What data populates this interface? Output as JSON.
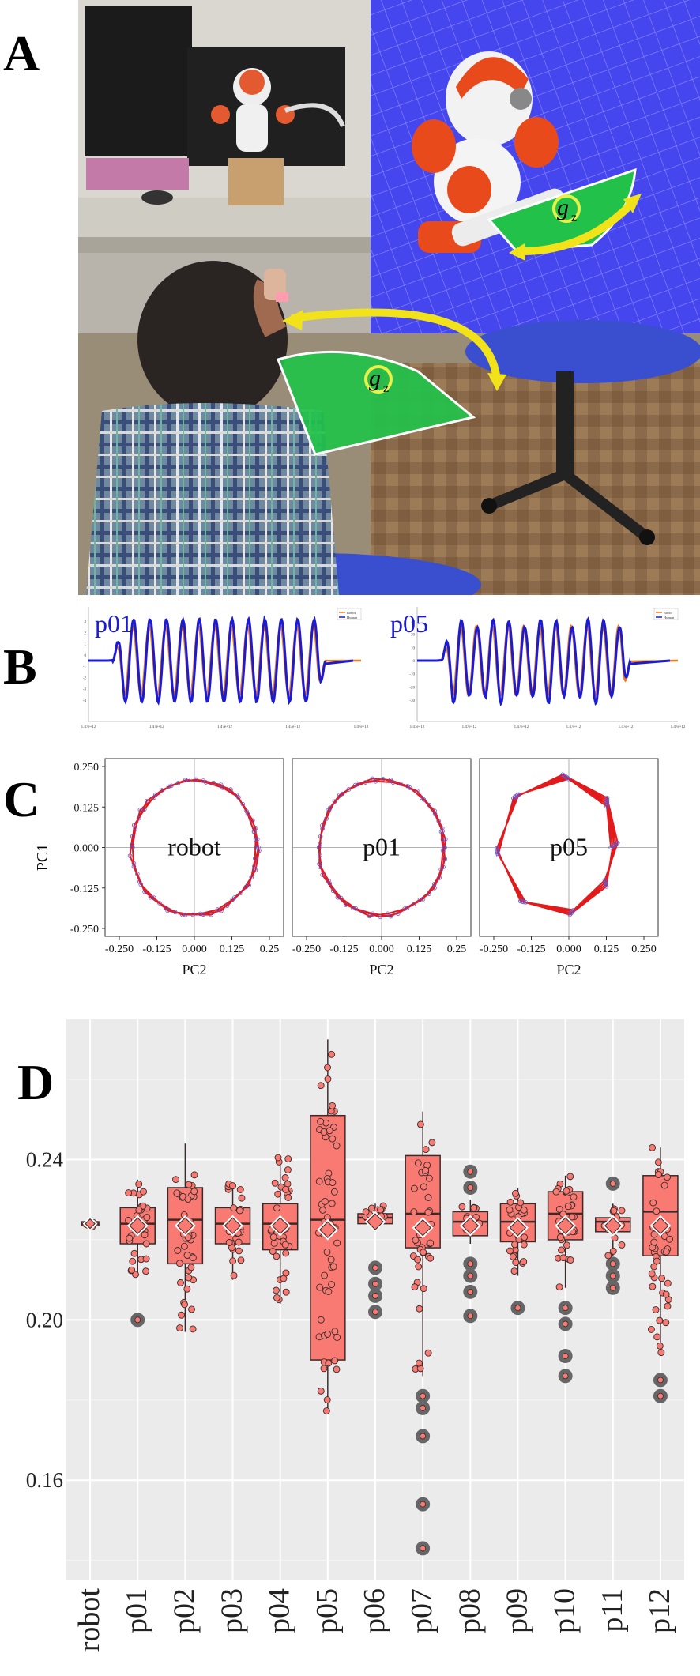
{
  "panels": {
    "a": "A",
    "b": "B",
    "c": "C",
    "d": "D"
  },
  "photo": {
    "gz_label_main": "g",
    "gz_label_sub": "z",
    "colors": {
      "green_area": "#22c24a",
      "arrow": "#f2e21a",
      "sim_floor": "#4c4cf0",
      "robot_orange": "#e84a1c"
    }
  },
  "signal_plots": [
    {
      "label": "p01",
      "legend": [
        "Robot",
        "Human"
      ],
      "x_ticks": [
        "1.47e+12",
        "1.47e+12",
        "1.47e+12",
        "1.47e+12",
        "1.47e+12"
      ],
      "y_ticks": [
        "3",
        "2",
        "1",
        "0",
        "-1",
        "-2",
        "-3",
        "-4"
      ]
    },
    {
      "label": "p05",
      "legend": [
        "Robot",
        "Human"
      ],
      "x_ticks": [
        "1.47e+12",
        "1.47e+12",
        "1.47e+12",
        "1.47e+12",
        "1.47e+12",
        "1.47e+12"
      ],
      "y_ticks": [
        "30",
        "20",
        "10",
        "0",
        "-10",
        "-20",
        "-30"
      ]
    }
  ],
  "colors": {
    "human_series": "#1b1bd6",
    "robot_series": "#f07a1e",
    "pc_line": "#e31a1c",
    "pc_point": "#5a5adf",
    "box_fill": "#f87a72",
    "box_edge": "#3a2a2a",
    "outlier": "#666666",
    "panel_bg": "#ebebeb"
  },
  "chart_data": [
    {
      "type": "scatter",
      "title": "robot",
      "xlabel": "PC2",
      "ylabel": "PC1",
      "xlim": [
        -0.25,
        0.25
      ],
      "ylim": [
        -0.25,
        0.25
      ],
      "x_ticks": [
        "-0.250",
        "-0.125",
        "0.000",
        "0.125",
        "0.25"
      ],
      "y_ticks": [
        "0.250",
        "0.125",
        "0.000",
        "-0.125",
        "-0.250"
      ],
      "radius": 0.21,
      "loops": 1
    },
    {
      "type": "scatter",
      "title": "p01",
      "xlabel": "PC2",
      "ylabel": "",
      "xlim": [
        -0.25,
        0.25
      ],
      "ylim": [
        -0.25,
        0.25
      ],
      "x_ticks": [
        "-0.250",
        "-0.125",
        "0.000",
        "0.125",
        "0.25"
      ],
      "radius": 0.21,
      "loops": 1
    },
    {
      "type": "scatter",
      "title": "p05",
      "xlabel": "PC2",
      "ylabel": "",
      "xlim": [
        -0.25,
        0.25
      ],
      "ylim": [
        -0.25,
        0.25
      ],
      "x_ticks": [
        "-0.250",
        "-0.125",
        "0.000",
        "0.125",
        "0.250"
      ],
      "radius": 0.2,
      "loops": 3
    },
    {
      "type": "box",
      "title": "",
      "xlabel": "",
      "ylabel": "",
      "ylim": [
        0.135,
        0.275
      ],
      "y_ticks": [
        0.16,
        0.2,
        0.24
      ],
      "y_tick_labels": [
        "0.16",
        "0.20",
        "0.24"
      ],
      "categories": [
        "robot",
        "p01",
        "p02",
        "p03",
        "p04",
        "p05",
        "p06",
        "p07",
        "p08",
        "p09",
        "p10",
        "p11",
        "p12"
      ],
      "boxes": [
        {
          "q1": 0.2235,
          "median": 0.224,
          "q3": 0.2245,
          "mean": 0.224,
          "wlo": 0.2235,
          "whi": 0.2245,
          "outliers": [],
          "n": 4,
          "min": 0.223,
          "max": 0.225
        },
        {
          "q1": 0.219,
          "median": 0.224,
          "q3": 0.228,
          "mean": 0.2235,
          "wlo": 0.211,
          "whi": 0.235,
          "outliers": [
            0.2
          ],
          "n": 34,
          "min": 0.211,
          "max": 0.235
        },
        {
          "q1": 0.214,
          "median": 0.225,
          "q3": 0.233,
          "mean": 0.2235,
          "wlo": 0.197,
          "whi": 0.244,
          "outliers": [],
          "n": 40,
          "min": 0.197,
          "max": 0.244
        },
        {
          "q1": 0.219,
          "median": 0.224,
          "q3": 0.228,
          "mean": 0.2235,
          "wlo": 0.21,
          "whi": 0.234,
          "outliers": [],
          "n": 30,
          "min": 0.21,
          "max": 0.234
        },
        {
          "q1": 0.2175,
          "median": 0.224,
          "q3": 0.229,
          "mean": 0.2235,
          "wlo": 0.204,
          "whi": 0.241,
          "outliers": [],
          "n": 40,
          "min": 0.204,
          "max": 0.241
        },
        {
          "q1": 0.19,
          "median": 0.225,
          "q3": 0.251,
          "mean": 0.2225,
          "wlo": 0.177,
          "whi": 0.27,
          "outliers": [],
          "n": 60,
          "min": 0.177,
          "max": 0.27
        },
        {
          "q1": 0.224,
          "median": 0.2255,
          "q3": 0.2265,
          "mean": 0.2245,
          "wlo": 0.222,
          "whi": 0.229,
          "outliers": [
            0.202,
            0.206,
            0.209,
            0.213
          ],
          "n": 18,
          "min": 0.222,
          "max": 0.229
        },
        {
          "q1": 0.218,
          "median": 0.2265,
          "q3": 0.241,
          "mean": 0.223,
          "wlo": 0.186,
          "whi": 0.252,
          "outliers": [
            0.181,
            0.178,
            0.171,
            0.154,
            0.143
          ],
          "n": 40,
          "min": 0.186,
          "max": 0.252
        },
        {
          "q1": 0.221,
          "median": 0.2245,
          "q3": 0.227,
          "mean": 0.2235,
          "wlo": 0.219,
          "whi": 0.23,
          "outliers": [
            0.237,
            0.233,
            0.214,
            0.211,
            0.207,
            0.201
          ],
          "n": 14,
          "min": 0.219,
          "max": 0.23
        },
        {
          "q1": 0.2195,
          "median": 0.2245,
          "q3": 0.229,
          "mean": 0.223,
          "wlo": 0.211,
          "whi": 0.233,
          "outliers": [
            0.203
          ],
          "n": 30,
          "min": 0.211,
          "max": 0.233
        },
        {
          "q1": 0.22,
          "median": 0.2265,
          "q3": 0.232,
          "mean": 0.2235,
          "wlo": 0.208,
          "whi": 0.236,
          "outliers": [
            0.203,
            0.199,
            0.191,
            0.186
          ],
          "n": 36,
          "min": 0.208,
          "max": 0.236
        },
        {
          "q1": 0.222,
          "median": 0.2245,
          "q3": 0.2255,
          "mean": 0.2235,
          "wlo": 0.216,
          "whi": 0.229,
          "outliers": [
            0.234,
            0.214,
            0.211,
            0.208
          ],
          "n": 14,
          "min": 0.216,
          "max": 0.229
        },
        {
          "q1": 0.216,
          "median": 0.227,
          "q3": 0.236,
          "mean": 0.2235,
          "wlo": 0.191,
          "whi": 0.243,
          "outliers": [
            0.185,
            0.181
          ],
          "n": 40,
          "min": 0.191,
          "max": 0.243
        }
      ],
      "grid": true
    }
  ]
}
